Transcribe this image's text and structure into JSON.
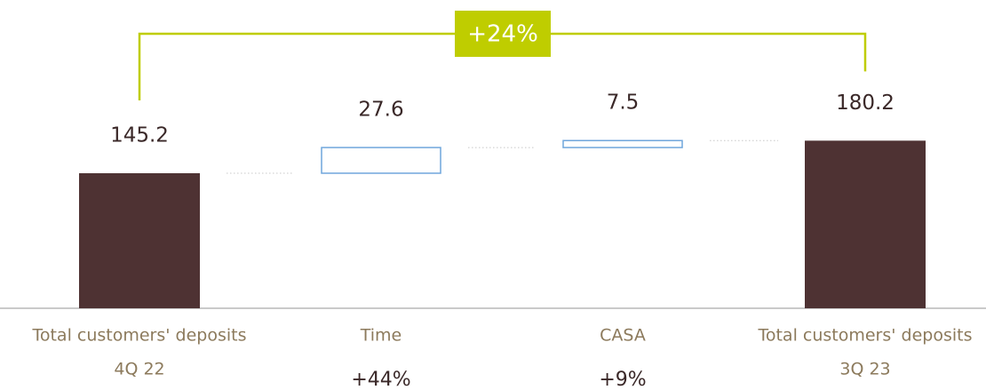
{
  "chart_data": {
    "type": "waterfall",
    "categories": [
      "Total customers' deposits",
      "Time",
      "CASA",
      "Total customers' deposits"
    ],
    "sublabels": [
      "4Q 22",
      null,
      null,
      "3Q 23"
    ],
    "change_labels": [
      null,
      "+44%",
      "+9%",
      null
    ],
    "values": [
      145.2,
      27.6,
      7.5,
      180.2
    ],
    "kinds": [
      "total",
      "delta",
      "delta",
      "total"
    ],
    "total_color": "#4e3233",
    "delta_color": "#6fa6dc",
    "annotation": {
      "text": "+24%",
      "color": "#bfcd00"
    }
  }
}
